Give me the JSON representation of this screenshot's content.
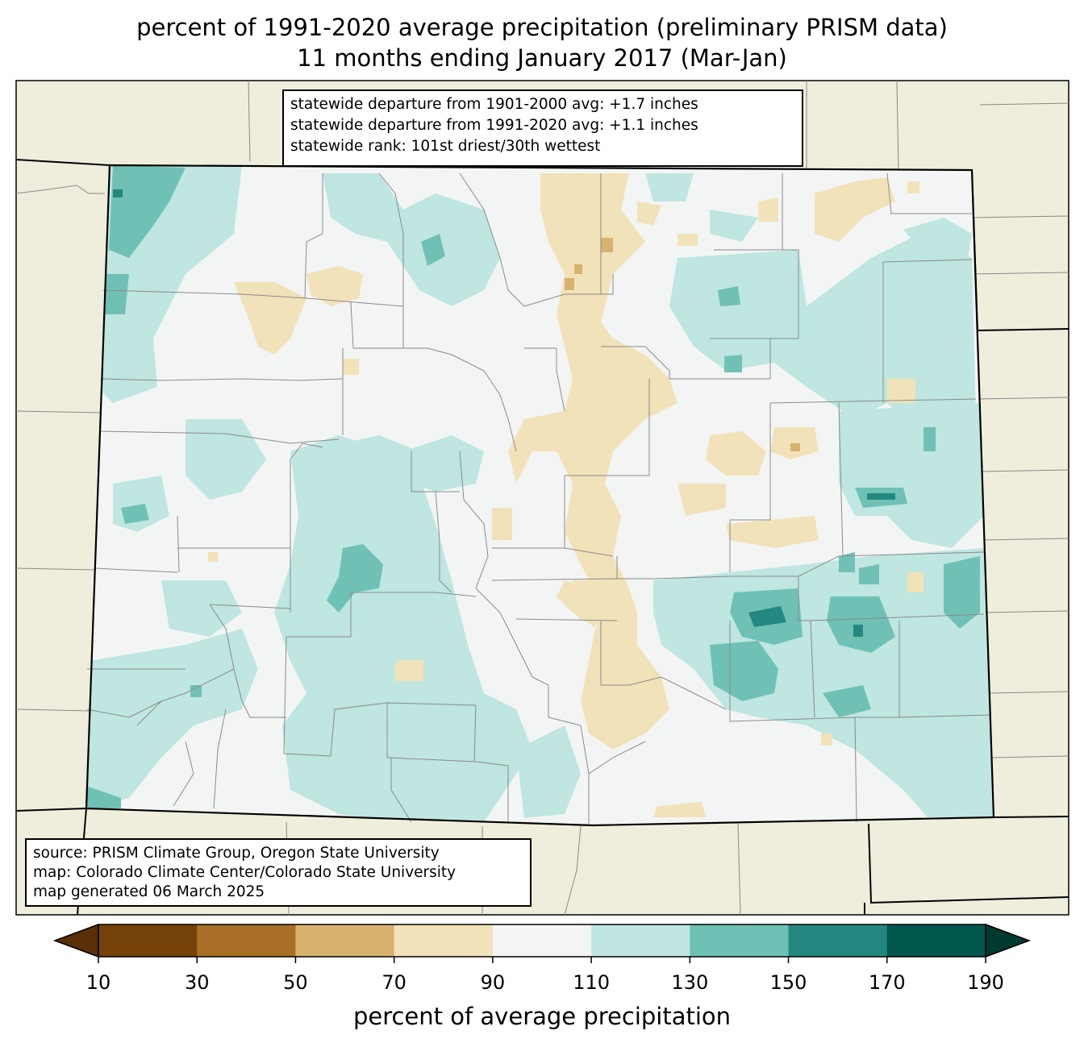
{
  "title_line1": "percent of 1991-2020 average precipitation (preliminary PRISM data)",
  "title_line2": "11 months ending January 2017 (Mar-Jan)",
  "stats": {
    "line1": "statewide departure from 1901-2000 avg: +1.7 inches",
    "line2": "statewide departure from 1991-2020 avg: +1.1 inches",
    "line3": "statewide rank: 101st driest/30th wettest"
  },
  "source": {
    "line1": "source: PRISM Climate Group, Oregon State University",
    "line2": "map: Colorado Climate Center/Colorado State University",
    "line3": "map generated 06 March 2025"
  },
  "colorbar": {
    "label": "percent of average precipitation",
    "ticks": [
      "10",
      "30",
      "50",
      "70",
      "90",
      "110",
      "130",
      "150",
      "170",
      "190"
    ],
    "bins": [
      {
        "color": "#744209"
      },
      {
        "color": "#a96f26"
      },
      {
        "color": "#d8b26f"
      },
      {
        "color": "#f2e2b9"
      },
      {
        "color": "#f3f5f4"
      },
      {
        "color": "#bfe6e1"
      },
      {
        "color": "#70c1b5"
      },
      {
        "color": "#238880"
      },
      {
        "color": "#02574d"
      }
    ],
    "under_color": "#593006",
    "over_color": "#00392f"
  },
  "colors": {
    "land_outside": "#efeedd",
    "state_near_normal": "#f3f5f4"
  }
}
